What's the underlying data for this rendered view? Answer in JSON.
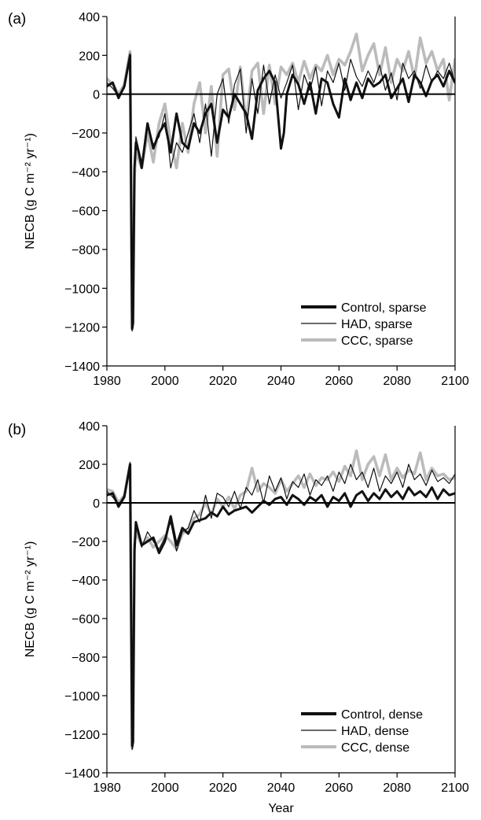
{
  "chart_data": [
    {
      "panel_label": "(a)",
      "type": "line",
      "xlabel": "",
      "ylabel": "NECB (g C m⁻² yr⁻¹)",
      "xlim": [
        1980,
        2100
      ],
      "ylim": [
        -1400,
        400
      ],
      "xticks": [
        "1980",
        "2000",
        "2020",
        "2040",
        "2060",
        "2080",
        "2100"
      ],
      "yticks": [
        "400",
        "200",
        "0",
        "−200",
        "−400",
        "−600",
        "−800",
        "−1000",
        "−1200",
        "−1400"
      ],
      "legend_position": "lower-right",
      "reference_line_y": 0,
      "grid": false,
      "series": [
        {
          "name": "Control, sparse",
          "color": "#111111",
          "style": "thick",
          "x": [
            1980,
            1982,
            1984,
            1986,
            1988,
            1988.7,
            1989,
            1989.5,
            1990,
            1991,
            1992,
            1994,
            1996,
            1998,
            2000,
            2002,
            2004,
            2006,
            2008,
            2010,
            2012,
            2014,
            2016,
            2018,
            2020,
            2022,
            2024,
            2026,
            2028,
            2030,
            2032,
            2034,
            2036,
            2038,
            2040,
            2041,
            2042,
            2044,
            2046,
            2048,
            2050,
            2052,
            2054,
            2056,
            2058,
            2060,
            2062,
            2064,
            2066,
            2068,
            2070,
            2072,
            2074,
            2076,
            2078,
            2080,
            2082,
            2084,
            2086,
            2088,
            2090,
            2092,
            2094,
            2096,
            2098,
            2100
          ],
          "y": [
            40,
            60,
            -20,
            40,
            200,
            -1210,
            -1180,
            -380,
            -250,
            -300,
            -380,
            -150,
            -280,
            -200,
            -150,
            -300,
            -100,
            -250,
            -280,
            -150,
            -200,
            -100,
            -50,
            -250,
            -80,
            -120,
            0,
            -50,
            -100,
            -230,
            20,
            80,
            120,
            60,
            -280,
            -200,
            0,
            100,
            50,
            -50,
            60,
            -100,
            80,
            60,
            -50,
            -120,
            80,
            -30,
            60,
            -20,
            80,
            40,
            60,
            100,
            -20,
            30,
            80,
            -40,
            100,
            60,
            -10,
            70,
            100,
            40,
            120,
            60
          ]
        },
        {
          "name": "HAD, sparse",
          "color": "#111111",
          "style": "thin",
          "x": [
            1980,
            1982,
            1984,
            1986,
            1988,
            1988.7,
            1989,
            1989.5,
            1990,
            1992,
            1994,
            1996,
            1998,
            2000,
            2002,
            2004,
            2006,
            2008,
            2010,
            2012,
            2014,
            2016,
            2018,
            2020,
            2022,
            2024,
            2026,
            2028,
            2030,
            2032,
            2034,
            2036,
            2038,
            2040,
            2042,
            2044,
            2046,
            2048,
            2050,
            2052,
            2054,
            2056,
            2058,
            2060,
            2062,
            2064,
            2066,
            2068,
            2070,
            2072,
            2074,
            2076,
            2078,
            2080,
            2082,
            2084,
            2086,
            2088,
            2090,
            2092,
            2094,
            2096,
            2098,
            2100
          ],
          "y": [
            60,
            30,
            -10,
            30,
            210,
            -1220,
            -1200,
            -400,
            -220,
            -350,
            -160,
            -260,
            -220,
            -100,
            -380,
            -250,
            -300,
            -200,
            -100,
            -250,
            -50,
            -320,
            0,
            80,
            -150,
            50,
            130,
            -200,
            80,
            -100,
            150,
            -50,
            100,
            -20,
            60,
            150,
            -80,
            100,
            20,
            140,
            -60,
            120,
            60,
            160,
            20,
            180,
            90,
            40,
            120,
            60,
            150,
            20,
            110,
            -30,
            160,
            80,
            120,
            30,
            150,
            60,
            120,
            80,
            160,
            60
          ]
        },
        {
          "name": "CCC, sparse",
          "color": "#bbbbbb",
          "style": "thick",
          "x": [
            1980,
            1982,
            1984,
            1986,
            1988,
            1988.7,
            1989,
            1989.5,
            1990,
            1992,
            1994,
            1996,
            1998,
            2000,
            2002,
            2004,
            2006,
            2008,
            2010,
            2012,
            2014,
            2016,
            2018,
            2020,
            2022,
            2024,
            2026,
            2028,
            2030,
            2032,
            2034,
            2036,
            2038,
            2040,
            2042,
            2044,
            2046,
            2048,
            2050,
            2052,
            2054,
            2056,
            2058,
            2060,
            2062,
            2064,
            2066,
            2068,
            2070,
            2072,
            2074,
            2076,
            2078,
            2080,
            2082,
            2084,
            2086,
            2088,
            2090,
            2092,
            2094,
            2096,
            2098,
            2100
          ],
          "y": [
            80,
            50,
            0,
            50,
            220,
            -1200,
            -1180,
            -420,
            -300,
            -380,
            -200,
            -350,
            -150,
            -50,
            -250,
            -380,
            -150,
            -300,
            -50,
            60,
            -200,
            40,
            -320,
            100,
            130,
            -80,
            140,
            -150,
            120,
            160,
            -100,
            150,
            -50,
            140,
            100,
            160,
            60,
            170,
            80,
            150,
            120,
            200,
            100,
            180,
            150,
            220,
            310,
            120,
            200,
            260,
            100,
            240,
            60,
            180,
            120,
            220,
            80,
            290,
            160,
            220,
            120,
            180,
            -30,
            180
          ]
        }
      ]
    },
    {
      "panel_label": "(b)",
      "type": "line",
      "xlabel": "Year",
      "ylabel": "NECB (g C m⁻² yr⁻¹)",
      "xlim": [
        1980,
        2100
      ],
      "ylim": [
        -1400,
        400
      ],
      "xticks": [
        "1980",
        "2000",
        "2020",
        "2040",
        "2060",
        "2080",
        "2100"
      ],
      "yticks": [
        "400",
        "200",
        "0",
        "−200",
        "−400",
        "−600",
        "−800",
        "−1000",
        "−1200",
        "−1400"
      ],
      "legend_position": "lower-right",
      "reference_line_y": 0,
      "grid": false,
      "series": [
        {
          "name": "Control, dense",
          "color": "#111111",
          "style": "thick",
          "x": [
            1980,
            1982,
            1984,
            1986,
            1988,
            1988.7,
            1989,
            1989.5,
            1990,
            1992,
            1994,
            1996,
            1998,
            2000,
            2002,
            2004,
            2006,
            2008,
            2010,
            2012,
            2014,
            2016,
            2018,
            2020,
            2022,
            2024,
            2026,
            2028,
            2030,
            2032,
            2034,
            2036,
            2038,
            2040,
            2042,
            2044,
            2046,
            2048,
            2050,
            2052,
            2054,
            2056,
            2058,
            2060,
            2062,
            2064,
            2066,
            2068,
            2070,
            2072,
            2074,
            2076,
            2078,
            2080,
            2082,
            2084,
            2086,
            2088,
            2090,
            2092,
            2094,
            2096,
            2098,
            2100
          ],
          "y": [
            40,
            50,
            -20,
            30,
            200,
            -1260,
            -1240,
            -250,
            -100,
            -220,
            -200,
            -180,
            -260,
            -200,
            -70,
            -220,
            -130,
            -160,
            -100,
            -90,
            -80,
            -50,
            -70,
            -20,
            -60,
            -40,
            -30,
            -20,
            -50,
            -20,
            10,
            -10,
            20,
            30,
            -10,
            40,
            20,
            -10,
            30,
            10,
            40,
            -20,
            30,
            10,
            50,
            -20,
            40,
            60,
            10,
            50,
            20,
            70,
            30,
            60,
            20,
            80,
            40,
            60,
            30,
            80,
            20,
            70,
            40,
            50
          ]
        },
        {
          "name": "HAD, dense",
          "color": "#111111",
          "style": "thin",
          "x": [
            1980,
            1982,
            1984,
            1986,
            1988,
            1988.7,
            1989,
            1989.5,
            1990,
            1992,
            1994,
            1996,
            1998,
            2000,
            2002,
            2004,
            2006,
            2008,
            2010,
            2012,
            2014,
            2016,
            2018,
            2020,
            2022,
            2024,
            2026,
            2028,
            2030,
            2032,
            2034,
            2036,
            2038,
            2040,
            2042,
            2044,
            2046,
            2048,
            2050,
            2052,
            2054,
            2056,
            2058,
            2060,
            2062,
            2064,
            2066,
            2068,
            2070,
            2072,
            2074,
            2076,
            2078,
            2080,
            2082,
            2084,
            2086,
            2088,
            2090,
            2092,
            2094,
            2096,
            2098,
            2100
          ],
          "y": [
            60,
            30,
            -10,
            40,
            210,
            -1280,
            -1260,
            -200,
            -120,
            -230,
            -150,
            -200,
            -240,
            -180,
            -100,
            -250,
            -150,
            -130,
            -40,
            -100,
            40,
            -80,
            50,
            30,
            -20,
            60,
            -30,
            80,
            40,
            120,
            0,
            140,
            60,
            130,
            20,
            110,
            80,
            150,
            40,
            120,
            90,
            140,
            60,
            160,
            100,
            200,
            120,
            160,
            80,
            180,
            60,
            140,
            100,
            160,
            80,
            200,
            120,
            150,
            90,
            170,
            110,
            130,
            100,
            150
          ]
        },
        {
          "name": "CCC, dense",
          "color": "#bbbbbb",
          "style": "thick",
          "x": [
            1980,
            1982,
            1984,
            1986,
            1988,
            1988.7,
            1989,
            1989.5,
            1990,
            1992,
            1994,
            1996,
            1998,
            2000,
            2002,
            2004,
            2006,
            2008,
            2010,
            2012,
            2014,
            2016,
            2018,
            2020,
            2022,
            2024,
            2026,
            2028,
            2030,
            2032,
            2034,
            2036,
            2038,
            2040,
            2042,
            2044,
            2046,
            2048,
            2050,
            2052,
            2054,
            2056,
            2058,
            2060,
            2062,
            2064,
            2066,
            2068,
            2070,
            2072,
            2074,
            2076,
            2078,
            2080,
            2082,
            2084,
            2086,
            2088,
            2090,
            2092,
            2094,
            2096,
            2098,
            2100
          ],
          "y": [
            70,
            60,
            0,
            40,
            200,
            -1270,
            -1250,
            -220,
            -150,
            -220,
            -180,
            -230,
            -200,
            -170,
            -200,
            -240,
            -160,
            -140,
            -80,
            -60,
            0,
            -60,
            20,
            -20,
            30,
            -30,
            40,
            60,
            180,
            60,
            100,
            80,
            50,
            120,
            60,
            100,
            140,
            80,
            150,
            90,
            130,
            120,
            160,
            110,
            190,
            140,
            270,
            120,
            200,
            240,
            140,
            250,
            120,
            180,
            130,
            170,
            150,
            260,
            120,
            180,
            140,
            150,
            120,
            130
          ]
        }
      ]
    }
  ]
}
